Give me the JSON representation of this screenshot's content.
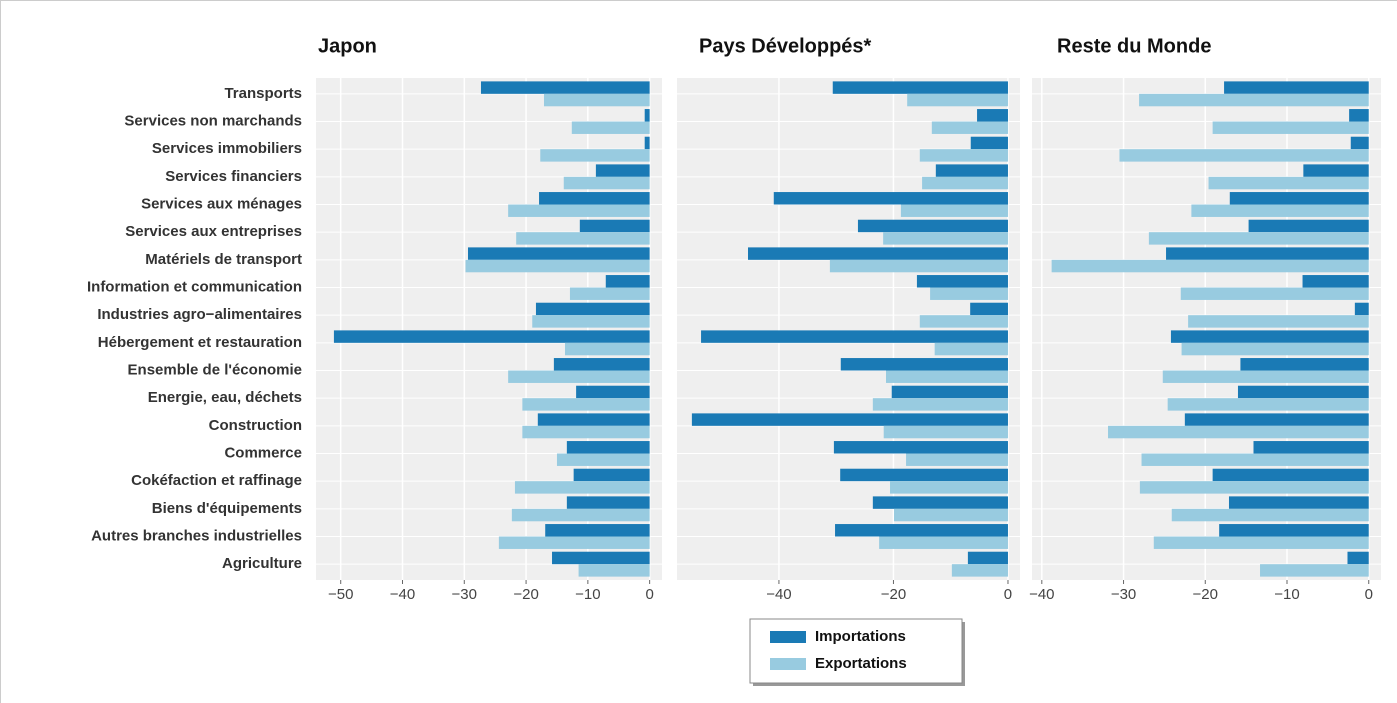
{
  "chart_data": [
    {
      "type": "bar",
      "orientation": "horizontal",
      "title": "Japon",
      "categories": [
        "Transports",
        "Services non marchands",
        "Services immobiliers",
        "Services financiers",
        "Services aux ménages",
        "Services aux entreprises",
        "Matériels de transport",
        "Information et communication",
        "Industries agro−alimentaires",
        "Hébergement et restauration",
        "Ensemble de l'économie",
        "Energie, eau, déchets",
        "Construction",
        "Commerce",
        "Cokéfaction et raffinage",
        "Biens d'équipements",
        "Autres branches industrielles",
        "Agriculture"
      ],
      "series": [
        {
          "name": "Importations",
          "color": "#1a7ab5",
          "values": [
            -27.3,
            -0.8,
            -0.8,
            -8.7,
            -17.9,
            -11.3,
            -29.4,
            -7.1,
            -18.4,
            -51.1,
            -15.5,
            -11.9,
            -18.1,
            -13.4,
            -12.3,
            -13.4,
            -16.9,
            -15.8
          ]
        },
        {
          "name": "Exportations",
          "color": "#98cbe0",
          "values": [
            -17.1,
            -12.6,
            -17.7,
            -13.9,
            -22.9,
            -21.6,
            -29.8,
            -12.9,
            -19.0,
            -13.7,
            -22.9,
            -20.6,
            -20.6,
            -15.0,
            -21.8,
            -22.3,
            -24.4,
            -11.5
          ]
        }
      ],
      "xlim": [
        -54,
        2
      ],
      "xticks": [
        {
          "value": -50,
          "label": "−50"
        },
        {
          "value": -40,
          "label": "−40"
        },
        {
          "value": -30,
          "label": "−30"
        },
        {
          "value": -20,
          "label": "−20"
        },
        {
          "value": -10,
          "label": "−10"
        },
        0
      ],
      "grid": true
    },
    {
      "type": "bar",
      "orientation": "horizontal",
      "title": "Pays Développés*",
      "series": [
        {
          "color": "#1a7ab5",
          "values": [
            -30.6,
            -5.4,
            -6.5,
            -12.6,
            -40.9,
            -26.2,
            -45.4,
            -15.9,
            -6.6,
            -53.6,
            -29.2,
            -20.3,
            -55.2,
            -30.4,
            -29.3,
            -23.6,
            -30.2,
            -7.0
          ]
        },
        {
          "color": "#98cbe0",
          "values": [
            -17.6,
            -13.3,
            -15.4,
            -15.0,
            -18.7,
            -21.8,
            -31.1,
            -13.6,
            -15.4,
            -12.8,
            -21.3,
            -23.6,
            -21.7,
            -17.8,
            -20.6,
            -19.9,
            -22.5,
            -9.8
          ]
        }
      ],
      "xlim": [
        -57.8,
        2.1
      ],
      "xticks": [
        {
          "value": -40,
          "label": "−40"
        },
        {
          "value": -20,
          "label": "−20"
        },
        0
      ],
      "grid": true
    },
    {
      "type": "bar",
      "orientation": "horizontal",
      "title": "Reste du Monde",
      "series": [
        {
          "color": "#1a7ab5",
          "values": [
            -17.7,
            -2.4,
            -2.2,
            -8.0,
            -17.0,
            -14.7,
            -24.8,
            -8.1,
            -1.7,
            -24.2,
            -15.7,
            -16.0,
            -22.5,
            -14.1,
            -19.1,
            -17.1,
            -18.3,
            -2.6
          ]
        },
        {
          "color": "#98cbe0",
          "values": [
            -28.1,
            -19.1,
            -30.5,
            -19.6,
            -21.7,
            -26.9,
            -38.8,
            -23.0,
            -22.1,
            -22.9,
            -25.2,
            -24.6,
            -31.9,
            -27.8,
            -28.0,
            -24.1,
            -26.3,
            -13.3
          ]
        }
      ],
      "xlim": [
        -41.2,
        1.5
      ],
      "xticks": [
        {
          "value": -40,
          "label": "−40"
        },
        {
          "value": -30,
          "label": "−30"
        },
        {
          "value": -20,
          "label": "−20"
        },
        {
          "value": -10,
          "label": "−10"
        },
        0
      ],
      "grid": true
    }
  ]
}
